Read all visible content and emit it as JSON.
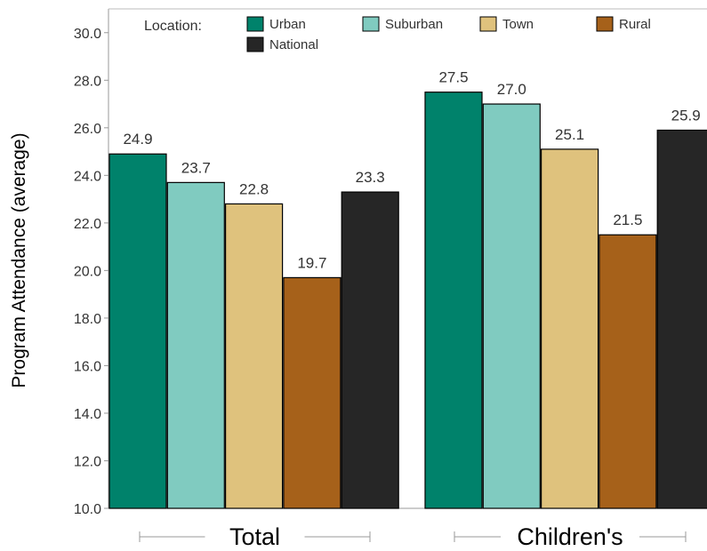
{
  "chart_data": {
    "type": "bar",
    "ylabel": "Program Attendance (average)",
    "ylim": [
      10,
      31
    ],
    "yticks": [
      "10.0",
      "12.0",
      "14.0",
      "16.0",
      "18.0",
      "20.0",
      "22.0",
      "24.0",
      "26.0",
      "28.0",
      "30.0"
    ],
    "legend_title": "Location:",
    "legend_position": "top",
    "grid": false,
    "categories": [
      "Total",
      "Children's"
    ],
    "series": [
      {
        "name": "Urban",
        "color": "#00826b",
        "values": [
          24.9,
          27.5
        ],
        "labels": [
          "24.9",
          "27.5"
        ]
      },
      {
        "name": "Suburban",
        "color": "#80cbc0",
        "values": [
          23.7,
          27.0
        ],
        "labels": [
          "23.7",
          "27.0"
        ]
      },
      {
        "name": "Town",
        "color": "#dfc27d",
        "values": [
          22.8,
          25.1
        ],
        "labels": [
          "22.8",
          "25.1"
        ]
      },
      {
        "name": "Rural",
        "color": "#a6611a",
        "values": [
          19.7,
          21.5
        ],
        "labels": [
          "19.7",
          "21.5"
        ]
      },
      {
        "name": "National",
        "color": "#262626",
        "values": [
          23.3,
          25.9
        ],
        "labels": [
          "23.3",
          "25.9"
        ]
      }
    ]
  }
}
